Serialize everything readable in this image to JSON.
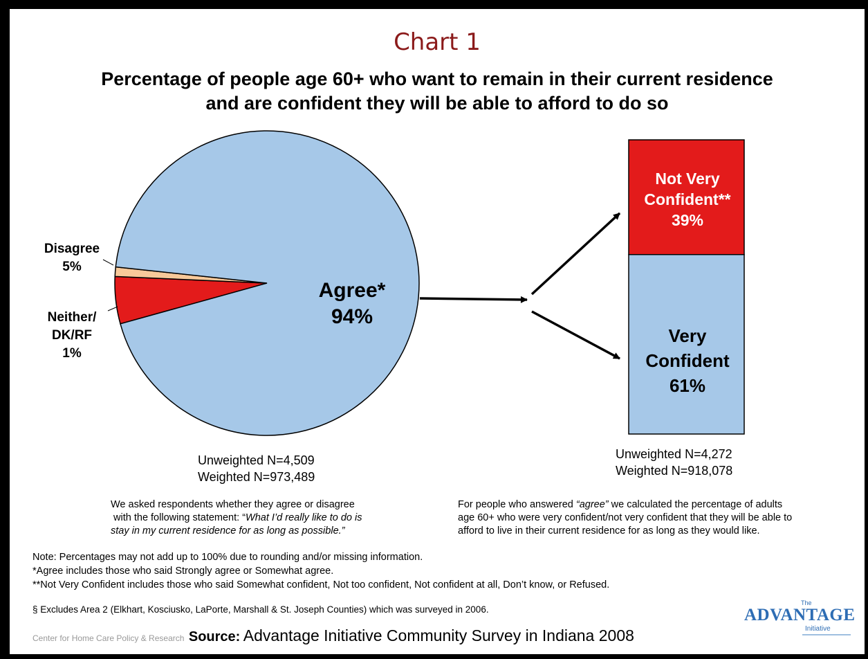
{
  "chart_number": "Chart 1",
  "title_line1": "Percentage of people age 60+ who want to remain in their current residence",
  "title_line2": "and are confident they will be able to afford to do so",
  "chart_data": [
    {
      "type": "pie",
      "categories": [
        "Agree*",
        "Disagree",
        "Neither/ DK/RF"
      ],
      "values": [
        94,
        5,
        1
      ],
      "colors": [
        "#a6c8e8",
        "#e31b1b",
        "#f8c99a"
      ],
      "labels": {
        "agree_name": "Agree*",
        "agree_value": "94%",
        "disagree_name": "Disagree",
        "disagree_value": "5%",
        "neither_line1": "Neither/",
        "neither_line2": "DK/RF",
        "neither_value": "1%"
      },
      "unweighted": "Unweighted N=4,509",
      "weighted": "Weighted N=973,489"
    },
    {
      "type": "bar",
      "stacked": true,
      "categories": [
        "Not Very Confident**",
        "Very Confident"
      ],
      "values": [
        39,
        61
      ],
      "colors": [
        "#e31b1b",
        "#a6c8e8"
      ],
      "labels": {
        "not_line1": "Not Very",
        "not_line2": "Confident**",
        "not_value": "39%",
        "very_line1": "Very",
        "very_line2": "Confident",
        "very_value": "61%"
      },
      "unweighted": "Unweighted N=4,272",
      "weighted": "Weighted N=918,078"
    }
  ],
  "explain_left": {
    "line1": "We asked respondents whether they agree or disagree",
    "line2a": "with the following statement: “",
    "line2b": "What I’d really like to do is",
    "line3": "stay in my current residence for as long as possible.",
    "line3_end": "”"
  },
  "explain_right": {
    "line1a": "For people who answered ",
    "line1b": "“agree”",
    "line1c": " we calculated the percentage of adults",
    "line2": "age 60+ who were very confident/not very confident that they will be able to",
    "line3": "afford to live in their current residence for as long as they would like."
  },
  "notes": [
    "Note: Percentages may not add up to 100% due to rounding and/or missing information.",
    "*Agree includes those who said Strongly agree or Somewhat agree.",
    "**Not Very Confident includes those who said Somewhat confident, Not too confident, Not confident at all, Don’t know, or Refused."
  ],
  "exclusion_note": "§ Excludes Area 2 (Elkhart, Kosciusko, LaPorte, Marshall & St. Joseph Counties) which was surveyed in 2006.",
  "footer": {
    "center_text": "Center for Home Care Policy & Research",
    "source_label": "Source:",
    "source_text": "Advantage Initiative Community Survey in Indiana 2008",
    "logo_the": "The",
    "logo_text": "ADVANTAGE",
    "logo_sub": "Initiative",
    "logo_color": "#2e6db4"
  },
  "colors": {
    "title_red": "#8b1a1a",
    "pie_blue": "#a6c8e8",
    "red": "#e31b1b",
    "peach": "#f8c99a"
  }
}
